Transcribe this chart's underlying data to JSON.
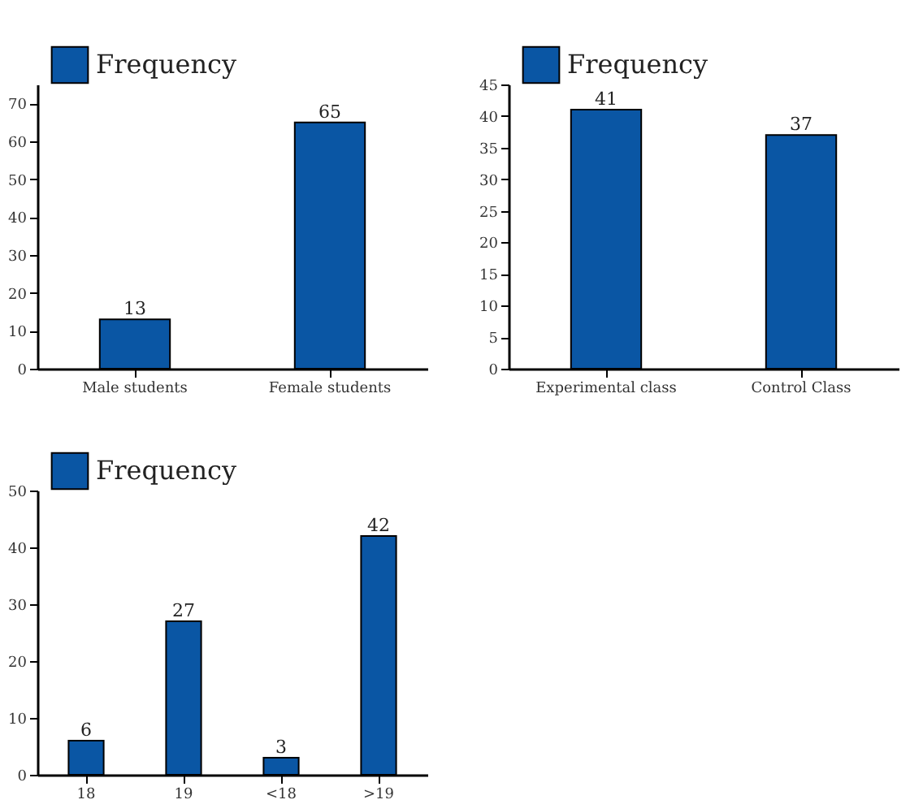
{
  "chart_data": [
    {
      "type": "bar",
      "categories": [
        "Male students",
        "Female students"
      ],
      "series": [
        {
          "name": "Frequency",
          "color": "#0a56a4",
          "values": [
            13,
            65
          ]
        }
      ],
      "ylim": [
        0,
        75
      ],
      "yticks": [
        0,
        10,
        20,
        30,
        40,
        50,
        60,
        70
      ],
      "data_labels": true,
      "legend": "top left",
      "grid": false
    },
    {
      "type": "bar",
      "categories": [
        "Experimental class",
        "Control Class"
      ],
      "series": [
        {
          "name": "Frequency",
          "color": "#0a56a4",
          "values": [
            41,
            37
          ]
        }
      ],
      "ylim": [
        0,
        45
      ],
      "yticks": [
        0,
        5,
        10,
        15,
        20,
        25,
        30,
        35,
        40,
        45
      ],
      "data_labels": true,
      "legend": "top left",
      "grid": false
    },
    {
      "type": "bar",
      "categories": [
        "18",
        "19",
        "<18",
        ">19"
      ],
      "series": [
        {
          "name": "Frequency",
          "color": "#0a56a4",
          "values": [
            6,
            27,
            3,
            42
          ]
        }
      ],
      "ylim": [
        0,
        50
      ],
      "yticks": [
        0,
        10,
        20,
        30,
        40,
        50
      ],
      "data_labels": true,
      "legend": "top left",
      "grid": false
    }
  ]
}
